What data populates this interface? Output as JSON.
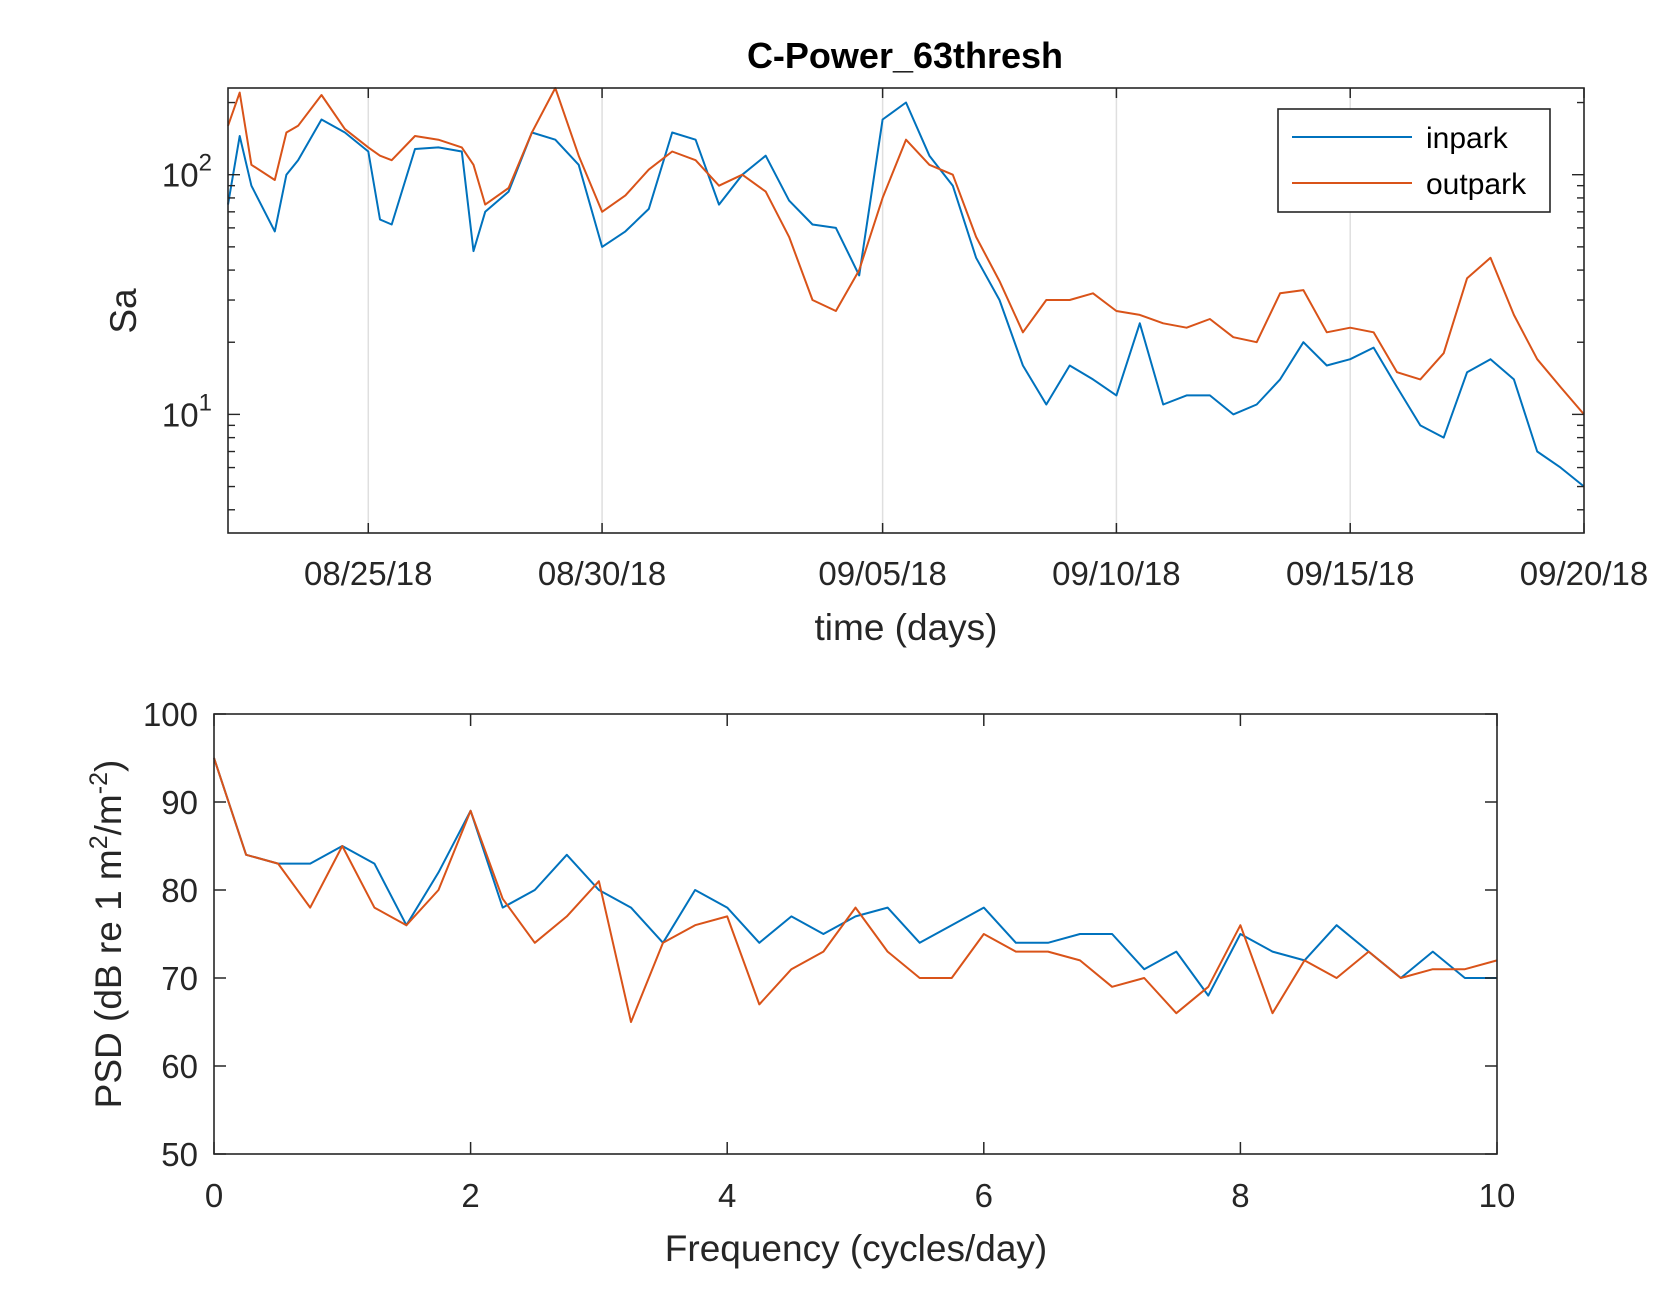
{
  "colors": {
    "inpark": "#0072BD",
    "outpark": "#D95319",
    "axis": "#262626",
    "grid": "#DFDFDF"
  },
  "chart_data": [
    {
      "type": "line",
      "title": "C-Power_63thresh",
      "xlabel": "time (days)",
      "ylabel": "Sa",
      "yscale": "log",
      "xlim": [
        "2018-08-22",
        "2018-09-20"
      ],
      "ylim": [
        3.2,
        230
      ],
      "x_ticks": [
        "08/25/18",
        "08/30/18",
        "09/05/18",
        "09/10/18",
        "09/15/18",
        "09/20/18"
      ],
      "x_tick_dates": [
        "2018-08-25",
        "2018-08-30",
        "2018-09-05",
        "2018-09-10",
        "2018-09-15",
        "2018-09-20"
      ],
      "y_ticks": [
        {
          "base": "10",
          "exp": "2",
          "value": 100
        },
        {
          "base": "10",
          "exp": "1",
          "value": 10
        }
      ],
      "grid": "x",
      "legend": {
        "placement": "top-right",
        "entries": [
          "inpark",
          "outpark"
        ]
      },
      "x": [
        "2018-08-22T00:00",
        "2018-08-22T06:00",
        "2018-08-22T12:00",
        "2018-08-23T00:00",
        "2018-08-23T06:00",
        "2018-08-23T12:00",
        "2018-08-24T00:00",
        "2018-08-24T12:00",
        "2018-08-25T00:00",
        "2018-08-25T06:00",
        "2018-08-25T12:00",
        "2018-08-26T00:00",
        "2018-08-26T12:00",
        "2018-08-27T00:00",
        "2018-08-27T06:00",
        "2018-08-27T12:00",
        "2018-08-28T00:00",
        "2018-08-28T12:00",
        "2018-08-29T00:00",
        "2018-08-29T12:00",
        "2018-08-30T00:00",
        "2018-08-30T12:00",
        "2018-08-31T00:00",
        "2018-08-31T12:00",
        "2018-09-01T00:00",
        "2018-09-01T12:00",
        "2018-09-02T00:00",
        "2018-09-02T12:00",
        "2018-09-03T00:00",
        "2018-09-03T12:00",
        "2018-09-04T00:00",
        "2018-09-04T12:00",
        "2018-09-05T00:00",
        "2018-09-05T12:00",
        "2018-09-06T00:00",
        "2018-09-06T12:00",
        "2018-09-07T00:00",
        "2018-09-07T12:00",
        "2018-09-08T00:00",
        "2018-09-08T12:00",
        "2018-09-09T00:00",
        "2018-09-09T12:00",
        "2018-09-10T00:00",
        "2018-09-10T12:00",
        "2018-09-11T00:00",
        "2018-09-11T12:00",
        "2018-09-12T00:00",
        "2018-09-12T12:00",
        "2018-09-13T00:00",
        "2018-09-13T12:00",
        "2018-09-14T00:00",
        "2018-09-14T12:00",
        "2018-09-15T00:00",
        "2018-09-15T12:00",
        "2018-09-16T00:00",
        "2018-09-16T12:00",
        "2018-09-17T00:00",
        "2018-09-17T12:00",
        "2018-09-18T00:00",
        "2018-09-18T12:00",
        "2018-09-19T00:00",
        "2018-09-19T12:00",
        "2018-09-20T00:00"
      ],
      "series": [
        {
          "name": "inpark",
          "values": [
            75,
            145,
            90,
            58,
            100,
            115,
            170,
            150,
            125,
            65,
            62,
            128,
            130,
            125,
            48,
            70,
            85,
            150,
            140,
            110,
            50,
            58,
            72,
            150,
            140,
            75,
            100,
            120,
            78,
            62,
            60,
            38,
            170,
            200,
            120,
            90,
            45,
            30,
            16,
            11,
            16,
            14,
            12,
            24,
            11,
            12,
            12,
            10,
            11,
            14,
            20,
            16,
            17,
            19,
            13,
            9,
            8,
            15,
            17,
            14,
            7,
            6,
            5
          ]
        },
        {
          "name": "outpark",
          "values": [
            160,
            220,
            110,
            95,
            150,
            160,
            215,
            155,
            130,
            120,
            115,
            145,
            140,
            130,
            110,
            75,
            88,
            150,
            230,
            120,
            70,
            82,
            105,
            125,
            115,
            90,
            100,
            85,
            55,
            30,
            27,
            40,
            80,
            140,
            110,
            100,
            55,
            36,
            22,
            30,
            30,
            32,
            27,
            26,
            24,
            23,
            25,
            21,
            20,
            32,
            33,
            22,
            23,
            22,
            15,
            14,
            18,
            37,
            45,
            26,
            17,
            13,
            10
          ]
        }
      ]
    },
    {
      "type": "line",
      "title": "",
      "xlabel": "Frequency (cycles/day)",
      "ylabel_text": "PSD (dB re 1 m",
      "ylabel_sup1": "2",
      "ylabel_mid": "/m",
      "ylabel_sup2": "-2",
      "ylabel_end": ")",
      "xlim": [
        0,
        10
      ],
      "ylim": [
        50,
        100
      ],
      "x_ticks": [
        "0",
        "2",
        "4",
        "6",
        "8",
        "10"
      ],
      "y_ticks": [
        "50",
        "60",
        "70",
        "80",
        "90",
        "100"
      ],
      "grid": "none",
      "x": [
        0,
        0.25,
        0.5,
        0.75,
        1,
        1.25,
        1.5,
        1.75,
        2,
        2.25,
        2.5,
        2.75,
        3,
        3.25,
        3.5,
        3.75,
        4,
        4.25,
        4.5,
        4.75,
        5,
        5.25,
        5.5,
        5.75,
        6,
        6.25,
        6.5,
        6.75,
        7,
        7.25,
        7.5,
        7.75,
        8,
        8.25,
        8.5,
        8.75,
        9,
        9.25,
        9.5,
        9.75,
        10
      ],
      "series": [
        {
          "name": "inpark",
          "values": [
            95,
            84,
            83,
            83,
            85,
            83,
            76,
            82,
            89,
            78,
            80,
            84,
            80,
            78,
            74,
            80,
            78,
            74,
            77,
            75,
            77,
            78,
            74,
            76,
            78,
            74,
            74,
            75,
            75,
            71,
            73,
            68,
            75,
            73,
            72,
            76,
            73,
            70,
            73,
            70,
            70
          ]
        },
        {
          "name": "outpark",
          "values": [
            95,
            84,
            83,
            78,
            85,
            78,
            76,
            80,
            89,
            79,
            74,
            77,
            81,
            65,
            74,
            76,
            77,
            67,
            71,
            73,
            78,
            73,
            70,
            70,
            75,
            73,
            73,
            72,
            69,
            70,
            66,
            69,
            76,
            66,
            72,
            70,
            73,
            70,
            71,
            71,
            72
          ]
        }
      ]
    }
  ]
}
